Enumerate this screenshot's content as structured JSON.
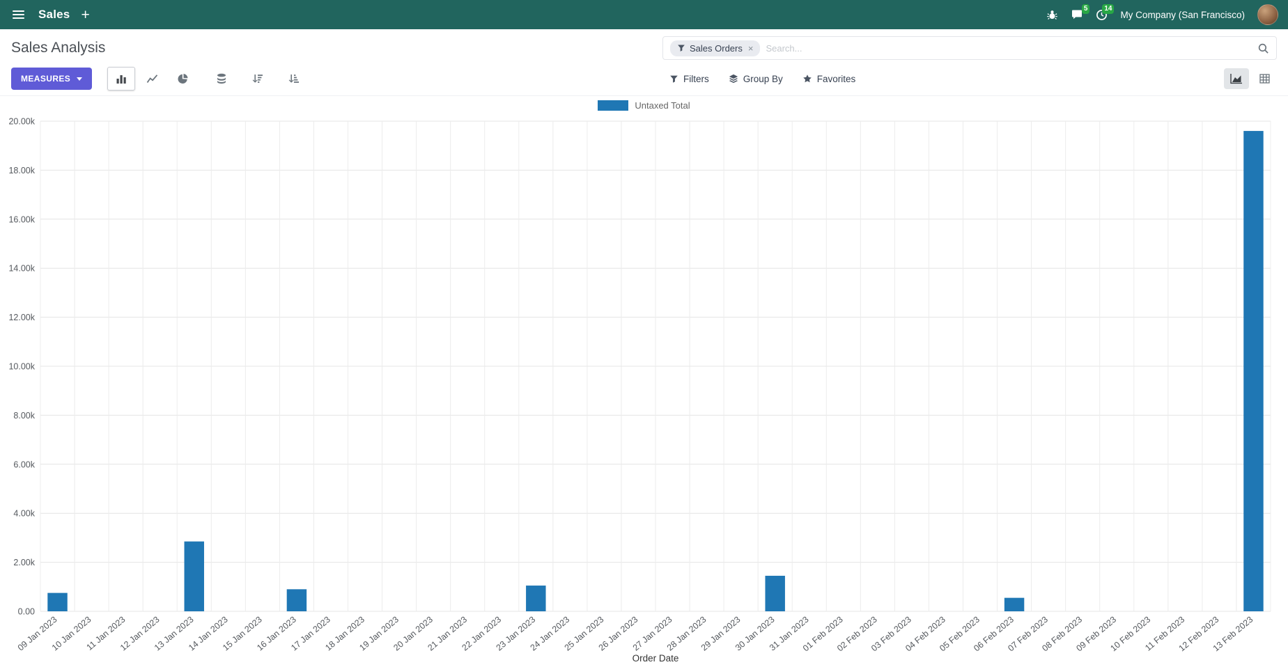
{
  "navbar": {
    "app_name": "Sales",
    "company": "My Company (San Francisco)",
    "messages_badge": "5",
    "activities_badge": "14"
  },
  "control_panel": {
    "title": "Sales Analysis",
    "measures_label": "MEASURES",
    "filters_label": "Filters",
    "group_by_label": "Group By",
    "favorites_label": "Favorites",
    "search": {
      "facet_label": "Sales Orders",
      "facet_remove": "×",
      "placeholder": "Search..."
    }
  },
  "icons": {
    "apps-menu-icon": "hamburger",
    "new-record-icon": "+",
    "debug-icon": "bug",
    "messages-icon": "chat-bubble",
    "activities-icon": "clock",
    "filter-facet-icon": "funnel",
    "search-icon": "magnifier",
    "bar-chart-icon": "bar-chart",
    "line-chart-icon": "line-chart",
    "pie-chart-icon": "pie-chart",
    "stacked-icon": "database-stack",
    "sort-desc-icon": "sort-amount-desc",
    "sort-asc-icon": "sort-amount-asc",
    "filters-icon": "funnel",
    "group-by-icon": "layers",
    "favorites-icon": "star",
    "graph-view-icon": "area-chart",
    "pivot-view-icon": "table-grid"
  },
  "chart_data": {
    "type": "bar",
    "title": "",
    "xlabel": "Order Date",
    "ylabel": "",
    "ylim": [
      0,
      20000
    ],
    "ytick_step": 2000,
    "grid": true,
    "legend_position": "top",
    "colors": [
      "#1f77b4"
    ],
    "categories": [
      "09 Jan 2023",
      "10 Jan 2023",
      "11 Jan 2023",
      "12 Jan 2023",
      "13 Jan 2023",
      "14 Jan 2023",
      "15 Jan 2023",
      "16 Jan 2023",
      "17 Jan 2023",
      "18 Jan 2023",
      "19 Jan 2023",
      "20 Jan 2023",
      "21 Jan 2023",
      "22 Jan 2023",
      "23 Jan 2023",
      "24 Jan 2023",
      "25 Jan 2023",
      "26 Jan 2023",
      "27 Jan 2023",
      "28 Jan 2023",
      "29 Jan 2023",
      "30 Jan 2023",
      "31 Jan 2023",
      "01 Feb 2023",
      "02 Feb 2023",
      "03 Feb 2023",
      "04 Feb 2023",
      "05 Feb 2023",
      "06 Feb 2023",
      "07 Feb 2023",
      "08 Feb 2023",
      "09 Feb 2023",
      "10 Feb 2023",
      "11 Feb 2023",
      "12 Feb 2023",
      "13 Feb 2023"
    ],
    "series": [
      {
        "name": "Untaxed Total",
        "values": [
          750,
          0,
          0,
          0,
          2850,
          0,
          0,
          900,
          0,
          0,
          0,
          0,
          0,
          0,
          1050,
          0,
          0,
          0,
          0,
          0,
          0,
          1450,
          0,
          0,
          0,
          0,
          0,
          0,
          550,
          0,
          0,
          0,
          0,
          0,
          0,
          19600
        ]
      }
    ]
  }
}
